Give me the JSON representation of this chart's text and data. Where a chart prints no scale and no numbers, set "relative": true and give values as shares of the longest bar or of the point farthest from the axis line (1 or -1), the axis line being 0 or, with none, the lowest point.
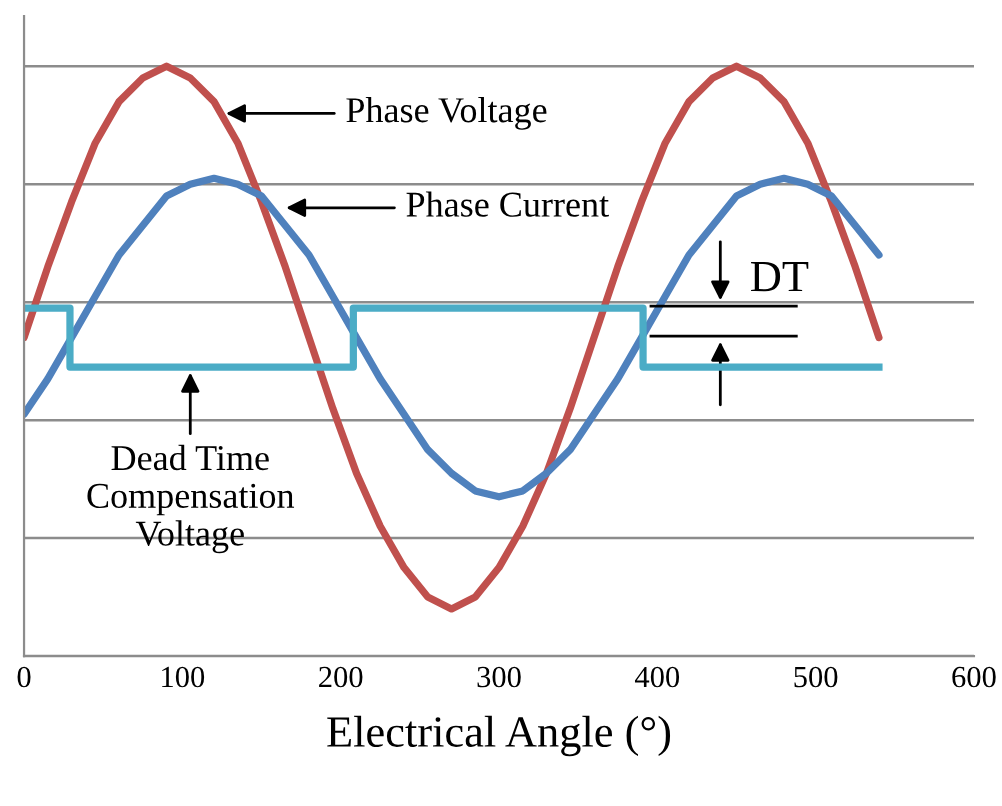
{
  "chart_data": {
    "type": "line",
    "relative": true,
    "xlabel": "Electrical Angle (°)",
    "xlim": [
      0,
      600
    ],
    "xticks": [
      0,
      100,
      200,
      300,
      400,
      500,
      600
    ],
    "grid": "y",
    "legend": false,
    "tick_labels": "x",
    "x": [
      0,
      15,
      30,
      45,
      60,
      75,
      90,
      105,
      120,
      135,
      150,
      165,
      180,
      195,
      210,
      225,
      240,
      255,
      270,
      285,
      300,
      315,
      330,
      345,
      360,
      375,
      390,
      405,
      420,
      435,
      450,
      465,
      480,
      495,
      510,
      525,
      540
    ],
    "series": [
      {
        "color": "#c0504d",
        "values": [
          0.54,
          0.66,
          0.77,
          0.87,
          0.94,
          0.98,
          1.0,
          0.98,
          0.94,
          0.87,
          0.77,
          0.66,
          0.54,
          0.42,
          0.31,
          0.22,
          0.15,
          0.1,
          0.08,
          0.1,
          0.15,
          0.22,
          0.31,
          0.42,
          0.54,
          0.66,
          0.77,
          0.87,
          0.94,
          0.98,
          1.0,
          0.98,
          0.94,
          0.87,
          0.77,
          0.66,
          0.54
        ]
      },
      {
        "color": "#4f81bd",
        "values": [
          0.41,
          0.47,
          0.54,
          0.61,
          0.68,
          0.73,
          0.78,
          0.8,
          0.81,
          0.8,
          0.78,
          0.73,
          0.68,
          0.61,
          0.54,
          0.47,
          0.41,
          0.35,
          0.31,
          0.28,
          0.27,
          0.28,
          0.31,
          0.35,
          0.41,
          0.47,
          0.54,
          0.61,
          0.68,
          0.73,
          0.78,
          0.8,
          0.81,
          0.8,
          0.78,
          0.73,
          0.68
        ]
      },
      {
        "type": "step",
        "color": "#4bacc6",
        "x": [
          0,
          29,
          208,
          391,
          540
        ],
        "values": [
          0.59,
          0.49,
          0.59,
          0.49,
          0.49
        ]
      }
    ],
    "annotations": [
      {
        "text": "Phase Voltage",
        "x": 124,
        "y": 0.92
      },
      {
        "text": "Phase Current",
        "x": 162,
        "y": 0.76
      },
      {
        "text": "Dead Time\nCompensation\nVoltage",
        "x": 105,
        "y": 0.49
      },
      "DT"
    ]
  }
}
